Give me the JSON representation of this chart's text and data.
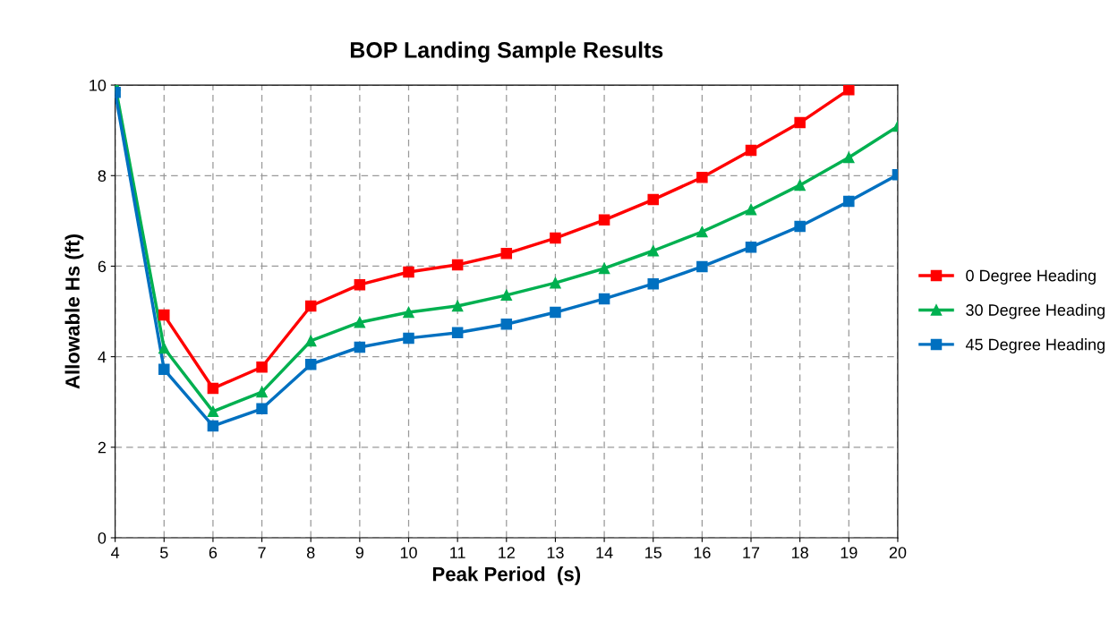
{
  "chart_data": {
    "type": "line",
    "title": "BOP Landing Sample Results",
    "xlabel": "Peak Period  (s)",
    "ylabel": "Allowable Hs (ft)",
    "x": [
      4,
      5,
      6,
      7,
      8,
      9,
      10,
      11,
      12,
      13,
      14,
      15,
      16,
      17,
      18,
      19,
      20
    ],
    "series": [
      {
        "name": "0 Degree Heading",
        "color": "#ff0000",
        "marker": "square",
        "values": [
          null,
          4.92,
          3.3,
          3.77,
          5.12,
          5.59,
          5.87,
          6.03,
          6.28,
          6.62,
          7.02,
          7.47,
          7.96,
          8.56,
          9.17,
          9.9,
          null
        ]
      },
      {
        "name": "30 Degree Heading",
        "color": "#00b050",
        "marker": "triangle",
        "values": [
          10.0,
          4.19,
          2.79,
          3.22,
          4.35,
          4.76,
          4.98,
          5.12,
          5.36,
          5.63,
          5.95,
          6.34,
          6.76,
          7.25,
          7.79,
          8.4,
          9.09
        ]
      },
      {
        "name": "45 Degree Heading",
        "color": "#0070c0",
        "marker": "square",
        "values": [
          9.84,
          3.72,
          2.47,
          2.85,
          3.83,
          4.21,
          4.41,
          4.53,
          4.72,
          4.98,
          5.28,
          5.61,
          5.99,
          6.42,
          6.88,
          7.43,
          8.02
        ]
      }
    ],
    "xlim": [
      4,
      20
    ],
    "xticks": [
      4,
      5,
      6,
      7,
      8,
      9,
      10,
      11,
      12,
      13,
      14,
      15,
      16,
      17,
      18,
      19,
      20
    ],
    "ylim": [
      0,
      10
    ],
    "yticks": [
      0,
      2,
      4,
      6,
      8,
      10
    ],
    "grid": true,
    "legend": "right",
    "line_style": "solid"
  }
}
